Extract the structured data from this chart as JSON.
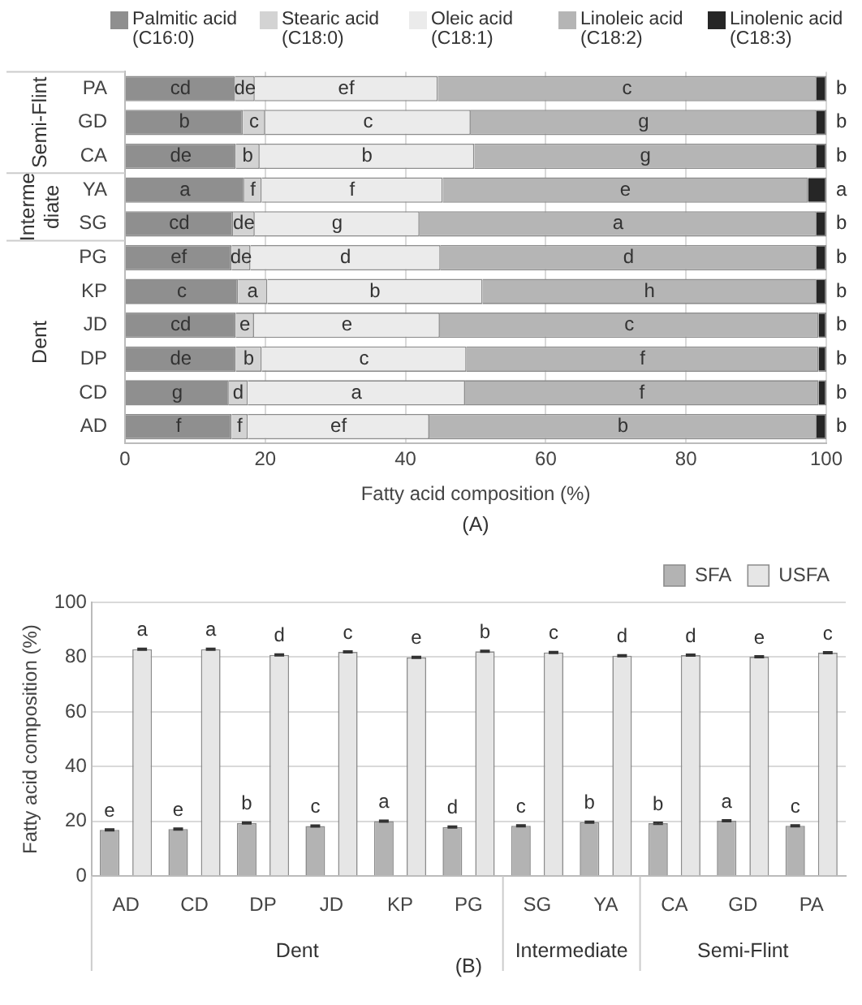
{
  "chart_data": [
    {
      "type": "bar",
      "orientation": "horizontal",
      "stacked": true,
      "xlabel": "Fatty acid composition (%)",
      "categories": [
        "PA",
        "GD",
        "CA",
        "YA",
        "SG",
        "PG",
        "KP",
        "JD",
        "DP",
        "CD",
        "AD"
      ],
      "series": [
        {
          "name": "Palmitic acid (C16:0)",
          "color": "#8f8f8f",
          "values": [
            15.7,
            16.8,
            15.8,
            17.0,
            15.4,
            15.2,
            16.1,
            15.8,
            15.8,
            14.8,
            15.2
          ],
          "value_labels": [
            "cd",
            "b",
            "de",
            "a",
            "cd",
            "ef",
            "c",
            "cd",
            "de",
            "g",
            "f"
          ]
        },
        {
          "name": "Stearic acid (C18:0)",
          "color": "#d3d3d3",
          "values": [
            2.8,
            3.2,
            3.4,
            2.5,
            3.1,
            2.7,
            4.2,
            2.6,
            3.7,
            2.7,
            2.3
          ],
          "value_labels": [
            "de",
            "c",
            "b",
            "f",
            "de",
            "de",
            "a",
            "e",
            "b",
            "d",
            "f"
          ]
        },
        {
          "name": "Oleic acid (C18:1)",
          "color": "#ebebeb",
          "values": [
            26.1,
            29.3,
            30.6,
            25.8,
            23.5,
            27.1,
            30.7,
            26.5,
            29.2,
            31.0,
            25.9
          ],
          "value_labels": [
            "ef",
            "c",
            "b",
            "f",
            "g",
            "d",
            "b",
            "e",
            "c",
            "a",
            "ef"
          ]
        },
        {
          "name": "Linoleic acid (C18:2)",
          "color": "#b5b5b5",
          "values": [
            54.0,
            49.3,
            48.8,
            52.1,
            56.6,
            53.6,
            47.6,
            54.0,
            50.2,
            50.4,
            55.2
          ],
          "value_labels": [
            "c",
            "g",
            "g",
            "e",
            "a",
            "d",
            "h",
            "c",
            "f",
            "f",
            "b"
          ]
        },
        {
          "name": "Linolenic acid (C18:3)",
          "color": "#262626",
          "values": [
            1.4,
            1.4,
            1.4,
            2.6,
            1.4,
            1.4,
            1.4,
            1.1,
            1.1,
            1.1,
            1.4
          ],
          "value_labels": [
            "b",
            "b",
            "b",
            "a",
            "b",
            "b",
            "b",
            "b",
            "b",
            "b",
            "b"
          ]
        }
      ],
      "xlim": [
        0,
        100
      ],
      "xticks": [
        0,
        20,
        40,
        60,
        80,
        100
      ],
      "grid": "x",
      "legend": "top",
      "annotations": [
        "Semi-Flint",
        "Interme diate",
        "Dent",
        "(A)"
      ]
    },
    {
      "type": "bar",
      "ylabel": "Fatty acid composition (%)",
      "categories": [
        "AD",
        "CD",
        "DP",
        "JD",
        "KP",
        "PG",
        "SG",
        "YA",
        "CA",
        "GD",
        "PA"
      ],
      "series": [
        {
          "name": "SFA",
          "color": "#b3b3b3",
          "values": [
            16.9,
            17.2,
            19.4,
            18.3,
            20.1,
            17.9,
            18.4,
            19.7,
            19.3,
            20.2,
            18.4
          ],
          "errors": [
            0.3,
            0.3,
            0.3,
            0.3,
            0.3,
            0.3,
            0.3,
            0.3,
            0.3,
            0.3,
            0.3
          ],
          "value_labels": [
            "e",
            "e",
            "b",
            "c",
            "a",
            "d",
            "c",
            "b",
            "b",
            "a",
            "c"
          ]
        },
        {
          "name": "USFA",
          "color": "#e6e6e6",
          "values": [
            82.9,
            82.9,
            80.8,
            81.9,
            79.9,
            82.1,
            81.7,
            80.5,
            80.7,
            80.1,
            81.6
          ],
          "errors": [
            0.3,
            0.3,
            0.3,
            0.3,
            0.3,
            0.3,
            0.3,
            0.3,
            0.3,
            0.3,
            0.3
          ],
          "value_labels": [
            "a",
            "a",
            "d",
            "c",
            "e",
            "b",
            "c",
            "d",
            "d",
            "e",
            "c"
          ]
        }
      ],
      "ylim": [
        0,
        100
      ],
      "yticks": [
        0,
        20,
        40,
        60,
        80,
        100
      ],
      "grid": "y",
      "legend": "top right",
      "annotations": [
        "Dent",
        "Intermediate",
        "Semi-Flint",
        "(B)"
      ]
    }
  ]
}
